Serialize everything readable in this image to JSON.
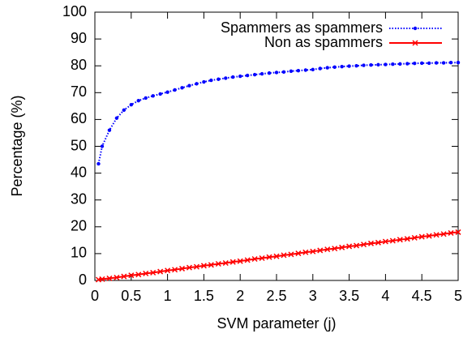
{
  "chart_data": {
    "type": "line",
    "xlabel": "SVM parameter (j)",
    "ylabel": "Percentage (%)",
    "x": [
      0.05,
      0.1,
      0.2,
      0.3,
      0.4,
      0.5,
      0.6,
      0.7,
      0.8,
      0.9,
      1.0,
      1.1,
      1.2,
      1.3,
      1.4,
      1.5,
      1.6,
      1.7,
      1.8,
      1.9,
      2.0,
      2.1,
      2.2,
      2.3,
      2.4,
      2.5,
      2.6,
      2.7,
      2.8,
      2.9,
      3.0,
      3.1,
      3.2,
      3.3,
      3.4,
      3.5,
      3.6,
      3.7,
      3.8,
      3.9,
      4.0,
      4.1,
      4.2,
      4.3,
      4.4,
      4.5,
      4.6,
      4.7,
      4.8,
      4.9,
      5.0
    ],
    "series": [
      {
        "name": "Spammers as spammers",
        "color": "#0000ff",
        "marker": "dot",
        "dash": "dotted",
        "values": [
          43.5,
          50,
          56,
          60.5,
          63.5,
          65.5,
          67,
          68,
          68.8,
          69.5,
          70.2,
          71,
          71.8,
          72.6,
          73.3,
          74,
          74.6,
          75,
          75.4,
          75.8,
          76.1,
          76.4,
          76.7,
          77,
          77.3,
          77.5,
          77.7,
          78,
          78.2,
          78.4,
          78.6,
          79,
          79.3,
          79.5,
          79.7,
          79.9,
          80,
          80.2,
          80.3,
          80.4,
          80.5,
          80.6,
          80.7,
          80.8,
          80.9,
          81,
          81,
          81.1,
          81.1,
          81.2,
          81.2
        ]
      },
      {
        "name": "Non as spammers",
        "color": "#ff0000",
        "marker": "cross",
        "dash": "solid",
        "values": [
          0.3,
          0.5,
          0.8,
          1.1,
          1.5,
          1.9,
          2.2,
          2.6,
          2.9,
          3.3,
          3.7,
          4.0,
          4.4,
          4.8,
          5.1,
          5.5,
          5.8,
          6.2,
          6.5,
          6.9,
          7.2,
          7.6,
          8.0,
          8.3,
          8.7,
          9.0,
          9.4,
          9.7,
          10.1,
          10.5,
          10.8,
          11.2,
          11.6,
          11.9,
          12.3,
          12.7,
          13.0,
          13.4,
          13.8,
          14.1,
          14.5,
          14.8,
          15.2,
          15.5,
          15.9,
          16.3,
          16.6,
          17.0,
          17.3,
          17.7,
          18.0
        ]
      }
    ],
    "xlim": [
      0,
      5
    ],
    "xticks": [
      0,
      0.5,
      1,
      1.5,
      2,
      2.5,
      3,
      3.5,
      4,
      4.5,
      5
    ],
    "ylim": [
      0,
      100
    ],
    "yticks": [
      0,
      10,
      20,
      30,
      40,
      50,
      60,
      70,
      80,
      90,
      100
    ],
    "grid": false,
    "legend": "top-right"
  }
}
